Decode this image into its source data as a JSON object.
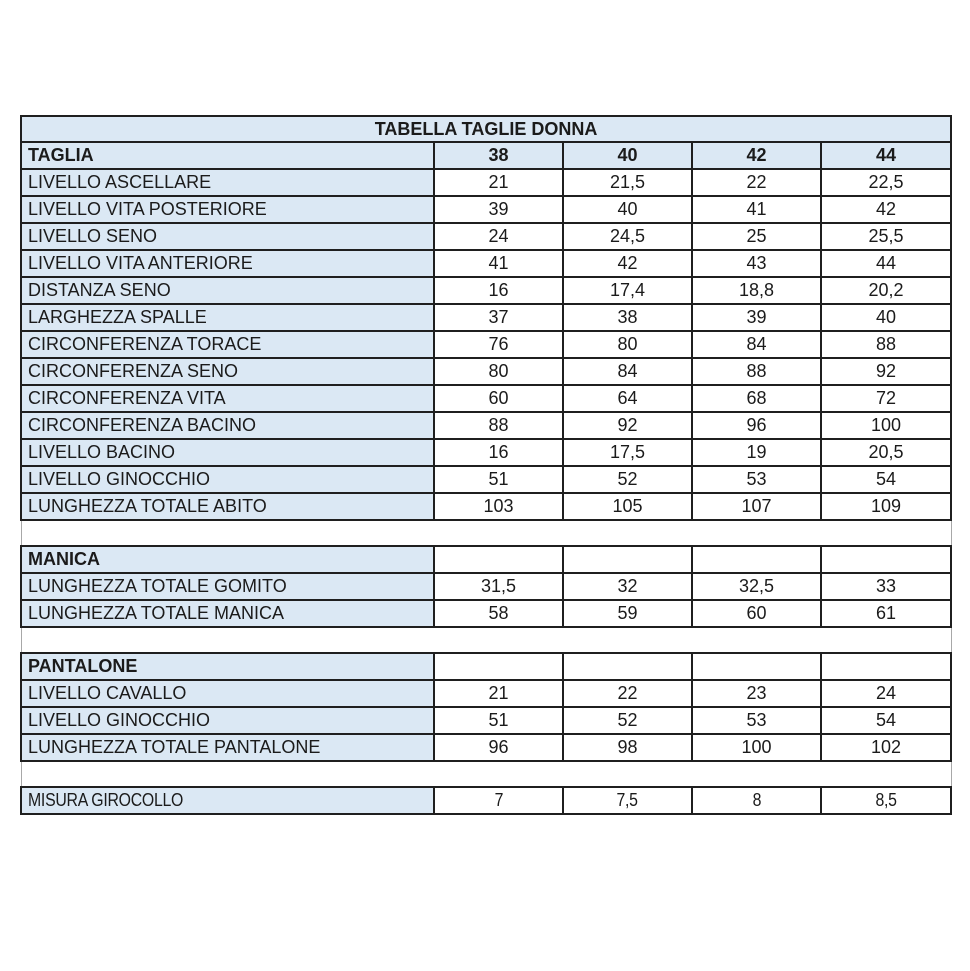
{
  "table": {
    "title": "TABELLA TAGLIE DONNA",
    "corner_label": "TAGLIA",
    "size_columns": [
      "38",
      "40",
      "42",
      "44"
    ],
    "sections": [
      {
        "name": null,
        "narrow": false,
        "rows": [
          {
            "label": "LIVELLO ASCELLARE",
            "values": [
              "21",
              "21,5",
              "22",
              "22,5"
            ]
          },
          {
            "label": "LIVELLO VITA POSTERIORE",
            "values": [
              "39",
              "40",
              "41",
              "42"
            ]
          },
          {
            "label": "LIVELLO SENO",
            "values": [
              "24",
              "24,5",
              "25",
              "25,5"
            ]
          },
          {
            "label": "LIVELLO VITA ANTERIORE",
            "values": [
              "41",
              "42",
              "43",
              "44"
            ]
          },
          {
            "label": "DISTANZA SENO",
            "values": [
              "16",
              "17,4",
              "18,8",
              "20,2"
            ]
          },
          {
            "label": "LARGHEZZA SPALLE",
            "values": [
              "37",
              "38",
              "39",
              "40"
            ]
          },
          {
            "label": "CIRCONFERENZA TORACE",
            "values": [
              "76",
              "80",
              "84",
              "88"
            ]
          },
          {
            "label": "CIRCONFERENZA SENO",
            "values": [
              "80",
              "84",
              "88",
              "92"
            ]
          },
          {
            "label": "CIRCONFERENZA VITA",
            "values": [
              "60",
              "64",
              "68",
              "72"
            ]
          },
          {
            "label": "CIRCONFERENZA BACINO",
            "values": [
              "88",
              "92",
              "96",
              "100"
            ]
          },
          {
            "label": "LIVELLO BACINO",
            "values": [
              "16",
              "17,5",
              "19",
              "20,5"
            ]
          },
          {
            "label": "LIVELLO GINOCCHIO",
            "values": [
              "51",
              "52",
              "53",
              "54"
            ]
          },
          {
            "label": "LUNGHEZZA TOTALE ABITO",
            "values": [
              "103",
              "105",
              "107",
              "109"
            ]
          }
        ]
      },
      {
        "name": "MANICA",
        "narrow": false,
        "rows": [
          {
            "label": "LUNGHEZZA TOTALE GOMITO",
            "values": [
              "31,5",
              "32",
              "32,5",
              "33"
            ]
          },
          {
            "label": "LUNGHEZZA TOTALE MANICA",
            "values": [
              "58",
              "59",
              "60",
              "61"
            ]
          }
        ]
      },
      {
        "name": "PANTALONE",
        "narrow": false,
        "rows": [
          {
            "label": "LIVELLO CAVALLO",
            "values": [
              "21",
              "22",
              "23",
              "24"
            ]
          },
          {
            "label": "LIVELLO GINOCCHIO",
            "values": [
              "51",
              "52",
              "53",
              "54"
            ]
          },
          {
            "label": "LUNGHEZZA TOTALE PANTALONE",
            "values": [
              "96",
              "98",
              "100",
              "102"
            ]
          }
        ]
      },
      {
        "name": null,
        "narrow": true,
        "rows": [
          {
            "label": "MISURA GIROCOLLO",
            "values": [
              "7",
              "7,5",
              "8",
              "8,5"
            ]
          }
        ]
      }
    ]
  },
  "colors": {
    "header_fill": "#dbe8f4",
    "border": "#1f1f1f",
    "gap_line": "#a8a8a8",
    "text": "#1b1b1b"
  }
}
